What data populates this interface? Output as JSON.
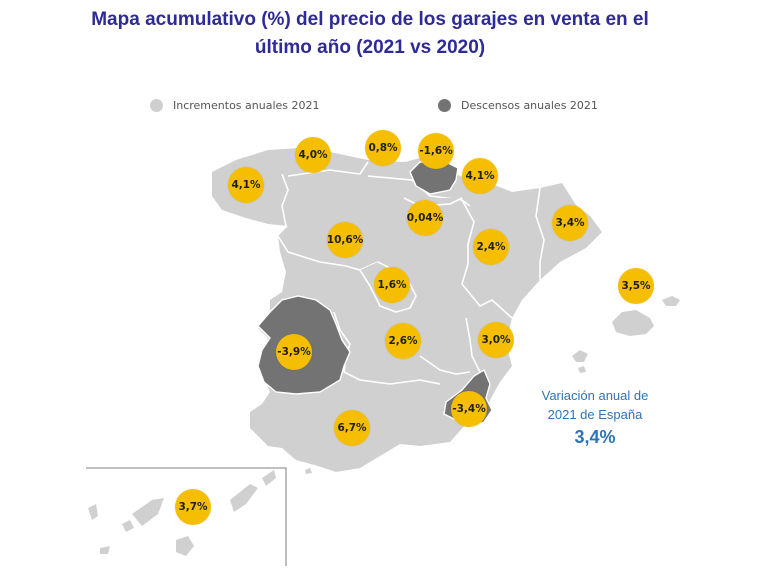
{
  "title": {
    "line1": "Mapa acumulativo (%) del precio de los garajes en venta en el",
    "line2": "último año (2021 vs 2020)"
  },
  "legend": {
    "increase": {
      "label": "Incrementos anuales 2021",
      "color": "#cfcfcf"
    },
    "decrease": {
      "label": "Descensos anuales 2021",
      "color": "#737373"
    }
  },
  "colors": {
    "increase_fill": "#d0d0d0",
    "decrease_fill": "#737373",
    "bubble": "#f5be00",
    "title": "#2e2a96",
    "national": "#2e74b5"
  },
  "regions": [
    {
      "name": "Galicia",
      "value": "4,1%",
      "trend": "increase"
    },
    {
      "name": "Asturias",
      "value": "4,0%",
      "trend": "increase"
    },
    {
      "name": "Cantabria",
      "value": "0,8%",
      "trend": "increase"
    },
    {
      "name": "País Vasco",
      "value": "-1,6%",
      "trend": "decrease"
    },
    {
      "name": "Navarra",
      "value": "4,1%",
      "trend": "increase"
    },
    {
      "name": "La Rioja",
      "value": "0,04%",
      "trend": "increase"
    },
    {
      "name": "Castilla y León",
      "value": "10,6%",
      "trend": "increase"
    },
    {
      "name": "Aragón",
      "value": "2,4%",
      "trend": "increase"
    },
    {
      "name": "Cataluña",
      "value": "3,4%",
      "trend": "increase"
    },
    {
      "name": "Madrid",
      "value": "1,6%",
      "trend": "increase"
    },
    {
      "name": "Baleares",
      "value": "3,5%",
      "trend": "increase"
    },
    {
      "name": "Extremadura",
      "value": "-3,9%",
      "trend": "decrease"
    },
    {
      "name": "Castilla-La Mancha",
      "value": "2,6%",
      "trend": "increase"
    },
    {
      "name": "C. Valenciana",
      "value": "3,0%",
      "trend": "increase"
    },
    {
      "name": "Murcia",
      "value": "-3,4%",
      "trend": "decrease"
    },
    {
      "name": "Andalucía",
      "value": "6,7%",
      "trend": "increase"
    },
    {
      "name": "Canarias",
      "value": "3,7%",
      "trend": "increase"
    }
  ],
  "national": {
    "label_line1": "Variación anual de",
    "label_line2": "2021 de España",
    "value": "3,4%"
  }
}
